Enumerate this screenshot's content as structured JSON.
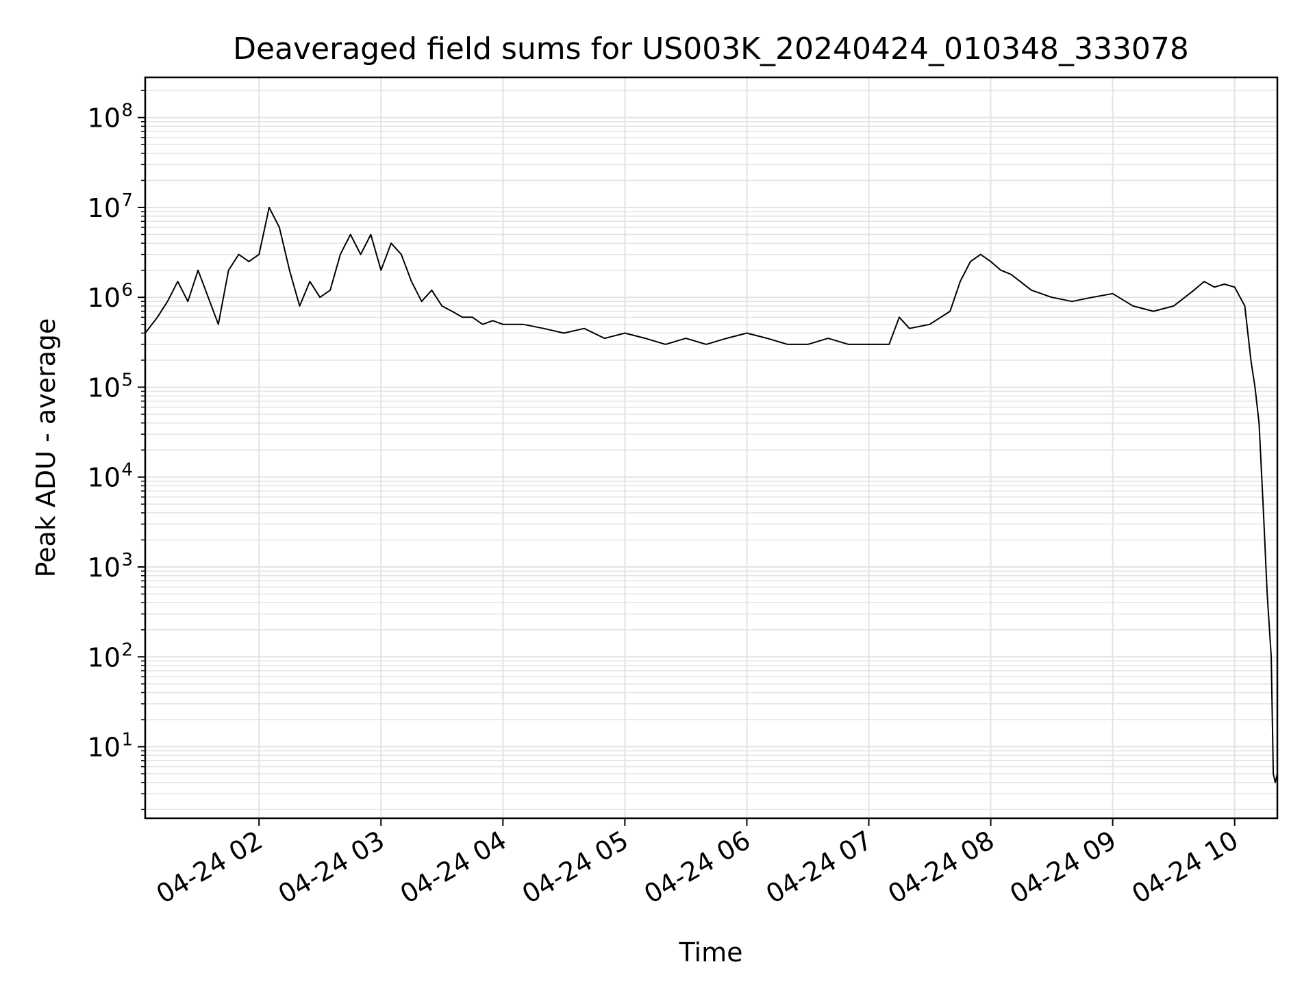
{
  "chart_data": {
    "type": "line",
    "title": "Deaveraged field sums for US003K_20240424_010348_333078",
    "xlabel": "Time",
    "ylabel": "Peak ADU - average",
    "yscale": "log",
    "ylim": [
      1.6,
      280000000
    ],
    "xlim": [
      "2024-04-24 01:04",
      "2024-04-24 10:21"
    ],
    "grid": true,
    "legend": "none",
    "line_color": "#000000",
    "grid_color": "#e3e3e3",
    "x_ticks": [
      "04-24 02",
      "04-24 03",
      "04-24 04",
      "04-24 05",
      "04-24 06",
      "04-24 07",
      "04-24 08",
      "04-24 09",
      "04-24 10"
    ],
    "y_ticks": [
      {
        "base": "10",
        "exp": "1",
        "value": 10
      },
      {
        "base": "10",
        "exp": "2",
        "value": 100
      },
      {
        "base": "10",
        "exp": "3",
        "value": 1000
      },
      {
        "base": "10",
        "exp": "4",
        "value": 10000
      },
      {
        "base": "10",
        "exp": "5",
        "value": 100000
      },
      {
        "base": "10",
        "exp": "6",
        "value": 1000000
      },
      {
        "base": "10",
        "exp": "7",
        "value": 10000000
      },
      {
        "base": "10",
        "exp": "8",
        "value": 100000000
      }
    ],
    "x": [
      "01:04",
      "01:10",
      "01:15",
      "01:20",
      "01:25",
      "01:30",
      "01:35",
      "01:40",
      "01:45",
      "01:50",
      "01:55",
      "02:00",
      "02:05",
      "02:10",
      "02:15",
      "02:20",
      "02:25",
      "02:30",
      "02:35",
      "02:40",
      "02:45",
      "02:50",
      "02:55",
      "03:00",
      "03:05",
      "03:10",
      "03:15",
      "03:20",
      "03:25",
      "03:30",
      "03:35",
      "03:40",
      "03:45",
      "03:50",
      "03:55",
      "04:00",
      "04:10",
      "04:20",
      "04:30",
      "04:40",
      "04:50",
      "05:00",
      "05:10",
      "05:20",
      "05:30",
      "05:40",
      "05:50",
      "06:00",
      "06:10",
      "06:20",
      "06:30",
      "06:40",
      "06:50",
      "07:00",
      "07:10",
      "07:15",
      "07:20",
      "07:30",
      "07:40",
      "07:45",
      "07:50",
      "07:55",
      "08:00",
      "08:05",
      "08:10",
      "08:20",
      "08:30",
      "08:40",
      "08:50",
      "09:00",
      "09:10",
      "09:20",
      "09:30",
      "09:40",
      "09:45",
      "09:50",
      "09:55",
      "10:00",
      "10:05",
      "10:08",
      "10:10",
      "10:12",
      "10:14",
      "10:16",
      "10:18",
      "10:19",
      "10:20",
      "10:21"
    ],
    "y": [
      400000,
      600000,
      900000,
      1500000,
      900000,
      2000000,
      1000000,
      500000,
      2000000,
      3000000,
      2500000,
      3000000,
      10000000,
      6000000,
      2000000,
      800000,
      1500000,
      1000000,
      1200000,
      3000000,
      5000000,
      3000000,
      5000000,
      2000000,
      4000000,
      3000000,
      1500000,
      900000,
      1200000,
      800000,
      700000,
      600000,
      600000,
      500000,
      550000,
      500000,
      500000,
      450000,
      400000,
      450000,
      350000,
      400000,
      350000,
      300000,
      350000,
      300000,
      350000,
      400000,
      350000,
      300000,
      300000,
      350000,
      300000,
      300000,
      300000,
      600000,
      450000,
      500000,
      700000,
      1500000,
      2500000,
      3000000,
      2500000,
      2000000,
      1800000,
      1200000,
      1000000,
      900000,
      1000000,
      1100000,
      800000,
      700000,
      800000,
      1200000,
      1500000,
      1300000,
      1400000,
      1300000,
      800000,
      200000,
      100000,
      40000,
      5000,
      500,
      100,
      5,
      4,
      5
    ]
  }
}
